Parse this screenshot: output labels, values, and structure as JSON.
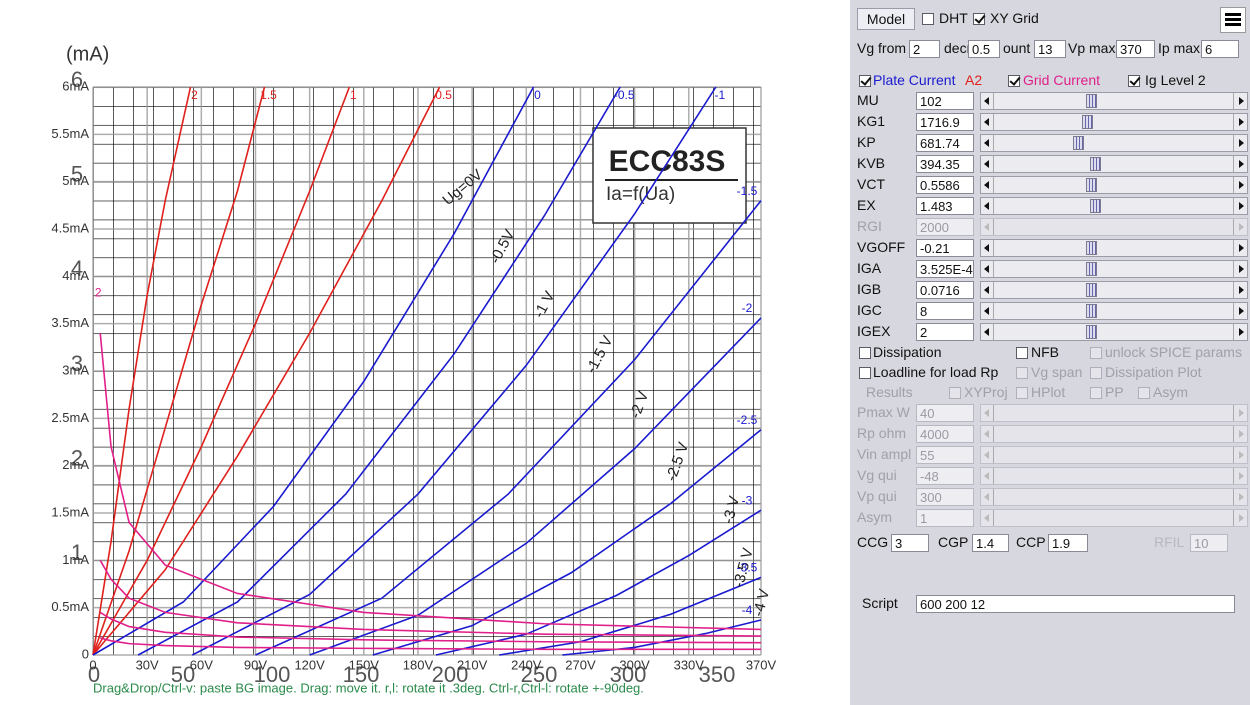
{
  "chart_data": {
    "type": "line",
    "y_unit": "(mA)",
    "title": "ECC83S",
    "subtitle": "Ia=f(Ua)",
    "xlim": [
      0,
      370
    ],
    "ylim": [
      0,
      6
    ],
    "grid": true,
    "xticks": [
      {
        "value": 0,
        "label": "0"
      },
      {
        "value": 30,
        "label": "30V"
      },
      {
        "value": 60,
        "label": "60V"
      },
      {
        "value": 90,
        "label": "90V"
      },
      {
        "value": 120,
        "label": "120V"
      },
      {
        "value": 150,
        "label": "150V"
      },
      {
        "value": 180,
        "label": "180V"
      },
      {
        "value": 210,
        "label": "210V"
      },
      {
        "value": 240,
        "label": "240V"
      },
      {
        "value": 270,
        "label": "270V"
      },
      {
        "value": 300,
        "label": "300V"
      },
      {
        "value": 330,
        "label": "330V"
      },
      {
        "value": 370,
        "label": "370V"
      }
    ],
    "yticks": [
      0,
      {
        "value": 0.5,
        "label": "0.5mA"
      },
      {
        "value": 1,
        "label": "1mA"
      },
      {
        "value": 1.5,
        "label": "1.5mA"
      },
      {
        "value": 2,
        "label": "2mA"
      },
      {
        "value": 2.5,
        "label": "2.5mA"
      },
      {
        "value": 3,
        "label": "3mA"
      },
      {
        "value": 3.5,
        "label": "3.5mA"
      },
      {
        "value": 4,
        "label": "4mA"
      },
      {
        "value": 4.5,
        "label": "4.5mA"
      },
      {
        "value": 5,
        "label": "5mA"
      },
      {
        "value": 5.5,
        "label": "5.5mA"
      },
      {
        "value": 6,
        "label": "6mA"
      }
    ],
    "bg_x_labels": [
      0,
      50,
      100,
      150,
      200,
      250,
      300,
      350
    ],
    "bg_y_labels": [
      1,
      2,
      3,
      4,
      5,
      6
    ],
    "bg_curve_labels": [
      "Ug=0V",
      "-0.5V",
      "-1 V",
      "-1.5 V",
      "-2 V",
      "-2.5 V",
      "-3 V",
      "-3.5 V",
      "-4 V"
    ],
    "series": [
      {
        "name": "2",
        "color": "#e0201c",
        "x": [
          0,
          10,
          20,
          30,
          40,
          54
        ],
        "values": [
          0,
          1.2,
          2.6,
          3.8,
          4.8,
          6
        ]
      },
      {
        "name": "1.5",
        "color": "#e0201c",
        "x": [
          0,
          20,
          40,
          60,
          80,
          95
        ],
        "values": [
          0,
          1.1,
          2.4,
          3.7,
          4.9,
          6
        ]
      },
      {
        "name": "1",
        "color": "#e0201c",
        "x": [
          0,
          30,
          60,
          90,
          120,
          142
        ],
        "values": [
          0,
          1.0,
          2.2,
          3.5,
          4.9,
          6
        ]
      },
      {
        "name": "0.5",
        "color": "#e0201c",
        "x": [
          0,
          40,
          80,
          120,
          160,
          192
        ],
        "values": [
          0,
          0.9,
          2.1,
          3.4,
          4.8,
          6
        ]
      },
      {
        "name": "0",
        "color": "#1a1ad0",
        "x": [
          0,
          50,
          100,
          150,
          200,
          244
        ],
        "values": [
          0,
          0.56,
          1.57,
          2.89,
          4.45,
          6
        ]
      },
      {
        "name": "-0.5",
        "color": "#1a1ad0",
        "x": [
          25,
          80,
          140,
          200,
          250,
          292
        ],
        "values": [
          0,
          0.56,
          1.7,
          3.18,
          4.64,
          6
        ]
      },
      {
        "name": "-1",
        "color": "#1a1ad0",
        "x": [
          55,
          120,
          180,
          240,
          300,
          345
        ],
        "values": [
          0,
          0.64,
          1.7,
          3.06,
          4.66,
          6
        ]
      },
      {
        "name": "-1.5",
        "color": "#1a1ad0",
        "x": [
          90,
          160,
          230,
          300,
          370
        ],
        "values": [
          0,
          0.6,
          1.7,
          3.12,
          4.8
        ]
      },
      {
        "name": "-2",
        "color": "#1a1ad0",
        "x": [
          120,
          180,
          240,
          300,
          370
        ],
        "values": [
          0,
          0.42,
          1.18,
          2.18,
          3.56
        ]
      },
      {
        "name": "-2.5",
        "color": "#1a1ad0",
        "x": [
          155,
          210,
          265,
          320,
          370
        ],
        "values": [
          0,
          0.31,
          0.87,
          1.6,
          2.38
        ]
      },
      {
        "name": "-3",
        "color": "#1a1ad0",
        "x": [
          190,
          240,
          290,
          330,
          370
        ],
        "values": [
          0,
          0.22,
          0.63,
          1.05,
          1.53
        ]
      },
      {
        "name": "-3.5",
        "color": "#1a1ad0",
        "x": [
          225,
          270,
          320,
          370
        ],
        "values": [
          0,
          0.14,
          0.43,
          0.82
        ]
      },
      {
        "name": "-4",
        "color": "#1a1ad0",
        "x": [
          260,
          300,
          340,
          370
        ],
        "values": [
          0,
          0.08,
          0.23,
          0.37
        ]
      }
    ],
    "grid_current_series": [
      {
        "name": "2",
        "color": "#e0208a",
        "x": [
          4,
          10,
          20,
          40,
          80,
          150,
          250,
          370
        ],
        "values": [
          3.4,
          2.2,
          1.4,
          0.95,
          0.65,
          0.45,
          0.33,
          0.27
        ]
      },
      {
        "color": "#e0208a",
        "x": [
          4,
          10,
          20,
          40,
          80,
          150,
          250,
          370
        ],
        "values": [
          1.0,
          0.8,
          0.6,
          0.45,
          0.34,
          0.27,
          0.22,
          0.2
        ]
      },
      {
        "color": "#e0208a",
        "x": [
          4,
          10,
          20,
          40,
          80,
          150,
          250,
          370
        ],
        "values": [
          0.45,
          0.38,
          0.3,
          0.24,
          0.19,
          0.16,
          0.14,
          0.13
        ]
      },
      {
        "color": "#e0208a",
        "x": [
          4,
          10,
          20,
          40,
          80,
          150,
          250,
          370
        ],
        "values": [
          0.18,
          0.15,
          0.12,
          0.1,
          0.08,
          0.07,
          0.06,
          0.06
        ]
      }
    ],
    "status": "Drag&Drop/Ctrl-v: paste BG image. Drag: move it. r,l: rotate it .3deg. Ctrl-r,Ctrl-l: rotate +-90deg."
  },
  "panel": {
    "model_button": "Model",
    "dht": {
      "label": "DHT",
      "checked": false
    },
    "xy_grid": {
      "label": "XY Grid",
      "checked": true
    },
    "range": [
      {
        "label": "Vg from",
        "value": "2"
      },
      {
        "label": "decr",
        "value": "0.5"
      },
      {
        "label": "ount",
        "value": "13"
      },
      {
        "label": "Vp max",
        "value": "370"
      },
      {
        "label": "Ip max",
        "value": "6"
      }
    ],
    "plate_current": {
      "label": "Plate Current",
      "checked": true
    },
    "anode": "A2",
    "grid_current": {
      "label": "Grid Current",
      "checked": true
    },
    "ig_level": {
      "label": "Ig Level 2",
      "checked": true
    },
    "params": [
      {
        "label": "MU",
        "value": "102",
        "enabled": true
      },
      {
        "label": "KG1",
        "value": "1716.9",
        "enabled": true
      },
      {
        "label": "KP",
        "value": "681.74",
        "enabled": true
      },
      {
        "label": "KVB",
        "value": "394.35",
        "enabled": true
      },
      {
        "label": "VCT",
        "value": "0.5586",
        "enabled": true
      },
      {
        "label": "EX",
        "value": "1.483",
        "enabled": true
      },
      {
        "label": "RGI",
        "value": "2000",
        "enabled": false
      },
      {
        "label": "VGOFF",
        "value": "-0.21",
        "enabled": true
      },
      {
        "label": "IGA",
        "value": "3.525E-4",
        "enabled": true
      },
      {
        "label": "IGB",
        "value": "0.0716",
        "enabled": true
      },
      {
        "label": "IGC",
        "value": "8",
        "enabled": true
      },
      {
        "label": "IGEX",
        "value": "2",
        "enabled": true
      }
    ],
    "options": [
      [
        {
          "label": "Dissipation",
          "checked": false,
          "enabled": true
        },
        {
          "label": "NFB",
          "checked": false,
          "enabled": true
        },
        {
          "label": "unlock SPICE params",
          "checked": false,
          "enabled": false
        }
      ],
      [
        {
          "label": "Loadline for load Rp",
          "checked": false,
          "enabled": true
        },
        {
          "label": "Vg span",
          "checked": false,
          "enabled": false
        },
        {
          "label": "Dissipation Plot",
          "checked": false,
          "enabled": false
        }
      ]
    ],
    "results_label": "Results",
    "results_options": [
      {
        "label": "XYProj",
        "checked": false
      },
      {
        "label": "HPlot",
        "checked": false
      },
      {
        "label": "PP",
        "checked": false
      },
      {
        "label": "Asym",
        "checked": false
      }
    ],
    "results": [
      {
        "label": "Pmax W",
        "value": "40"
      },
      {
        "label": "Rp ohm",
        "value": "4000"
      },
      {
        "label": "Vin ampl",
        "value": "55"
      },
      {
        "label": "Vg qui",
        "value": "-48"
      },
      {
        "label": "Vp qui",
        "value": "300"
      },
      {
        "label": "Asym",
        "value": "1"
      }
    ],
    "caps": [
      {
        "label": "CCG",
        "value": "3",
        "enabled": true
      },
      {
        "label": "CGP",
        "value": "1.4",
        "enabled": true
      },
      {
        "label": "CCP",
        "value": "1.9",
        "enabled": true
      },
      {
        "label": "RFIL",
        "value": "10",
        "enabled": false
      }
    ],
    "script": {
      "label": "Script",
      "value": "600 200 12"
    }
  }
}
